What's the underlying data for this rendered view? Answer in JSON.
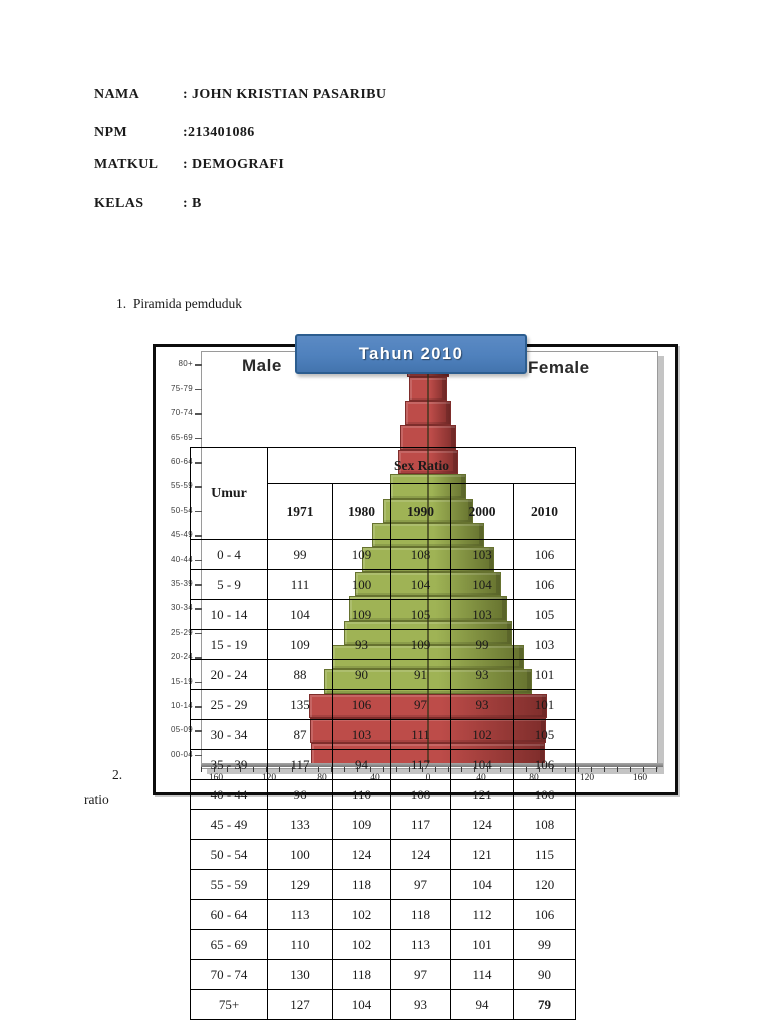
{
  "header": {
    "rows": [
      {
        "label": "NAMA",
        "value": ": JOHN KRISTIAN PASARIBU"
      },
      {
        "label": "NPM",
        "value": ":213401086"
      },
      {
        "label": "MATKUL",
        "value": ": DEMOGRAFI"
      },
      {
        "label": "KELAS",
        "value": ": B"
      }
    ]
  },
  "list_items": {
    "item1_number": "1.",
    "item1_text": "Piramida pemduduk",
    "item2_number": "2.",
    "item2_fragment": "ratio"
  },
  "chart": {
    "title": "Tahun 2010",
    "male_label": "Male",
    "female_label": "Female",
    "y_axis_labels": [
      "80+",
      "75-79",
      "70-74",
      "65-69",
      "60-64",
      "55-59",
      "50-54",
      "45-49",
      "40-44",
      "35-39",
      "30-34",
      "25-29",
      "20-24",
      "15-19",
      "10-14",
      "05-09",
      "00-04"
    ],
    "x_axis_labels": [
      "160",
      "120",
      "80",
      "40",
      "0",
      "40",
      "80",
      "120",
      "160"
    ],
    "colors": {
      "title_bg": "#4f81bd",
      "title_border": "#2c5d8f",
      "green": "#9fb355",
      "green_border": "#66722f",
      "red": "#bd4c49",
      "red_border": "#7e2d2b",
      "axis": "#777777"
    }
  },
  "chart_data": {
    "type": "pyramid",
    "title": "Tahun 2010",
    "note": "Symmetric stepped population pyramid (Male left, Female right); bar lengths unlabeled, given as relative half-widths in px; x axis 0-160 each side",
    "bars": [
      {
        "age": "80+",
        "half": 21,
        "color": "red"
      },
      {
        "age": "75-79",
        "half": 19,
        "color": "red"
      },
      {
        "age": "70-74",
        "half": 23,
        "color": "red"
      },
      {
        "age": "65-69",
        "half": 28,
        "color": "red"
      },
      {
        "age": "60-64",
        "half": 30,
        "color": "red"
      },
      {
        "age": "55-59",
        "half": 38,
        "color": "green"
      },
      {
        "age": "50-54",
        "half": 45,
        "color": "green"
      },
      {
        "age": "45-49",
        "half": 56,
        "color": "green"
      },
      {
        "age": "40-44",
        "half": 66,
        "color": "green"
      },
      {
        "age": "35-39",
        "half": 73,
        "color": "green"
      },
      {
        "age": "30-34",
        "half": 79,
        "color": "green"
      },
      {
        "age": "25-29",
        "half": 84,
        "color": "green"
      },
      {
        "age": "20-24",
        "half": 96,
        "color": "green"
      },
      {
        "age": "15-19",
        "half": 104,
        "color": "green"
      },
      {
        "age": "10-14",
        "half": 119,
        "color": "red"
      },
      {
        "age": "05-09",
        "half": 118,
        "color": "red"
      },
      {
        "age": "00-04",
        "half": 117,
        "color": "red"
      }
    ]
  },
  "table": {
    "corner_header": "Umur",
    "group_header": "Sex Ratio",
    "year_headers": [
      "1971",
      "1980",
      "1990",
      "2000",
      "2010"
    ],
    "rows": [
      {
        "age": "0 - 4",
        "values": [
          "99",
          "109",
          "108",
          "103",
          "106"
        ]
      },
      {
        "age": "5 - 9",
        "values": [
          "111",
          "100",
          "104",
          "104",
          "106"
        ]
      },
      {
        "age": "10 - 14",
        "values": [
          "104",
          "109",
          "105",
          "103",
          "105"
        ]
      },
      {
        "age": "15 - 19",
        "values": [
          "109",
          "93",
          "109",
          "99",
          "103"
        ]
      },
      {
        "age": "20 - 24",
        "values": [
          "88",
          "90",
          "91",
          "93",
          "101"
        ]
      },
      {
        "age": "25 - 29",
        "values": [
          "135",
          "106",
          "97",
          "93",
          "101"
        ]
      },
      {
        "age": "30 - 34",
        "values": [
          "87",
          "103",
          "111",
          "102",
          "105"
        ]
      },
      {
        "age": "35 - 39",
        "values": [
          "117",
          "94",
          "117",
          "104",
          "106"
        ]
      },
      {
        "age": "40 - 44",
        "values": [
          "96",
          "110",
          "108",
          "121",
          "106"
        ]
      },
      {
        "age": "45 - 49",
        "values": [
          "133",
          "109",
          "117",
          "124",
          "108"
        ]
      },
      {
        "age": "50 - 54",
        "values": [
          "100",
          "124",
          "124",
          "121",
          "115"
        ]
      },
      {
        "age": "55 - 59",
        "values": [
          "129",
          "118",
          "97",
          "104",
          "120"
        ]
      },
      {
        "age": "60 - 64",
        "values": [
          "113",
          "102",
          "118",
          "112",
          "106"
        ]
      },
      {
        "age": "65 - 69",
        "values": [
          "110",
          "102",
          "113",
          "101",
          "99"
        ]
      },
      {
        "age": "70 - 74",
        "values": [
          "130",
          "118",
          "97",
          "114",
          "90"
        ]
      },
      {
        "age": "75+",
        "values": [
          "127",
          "104",
          "93",
          "94",
          "79"
        ],
        "bold_last": true
      }
    ]
  }
}
